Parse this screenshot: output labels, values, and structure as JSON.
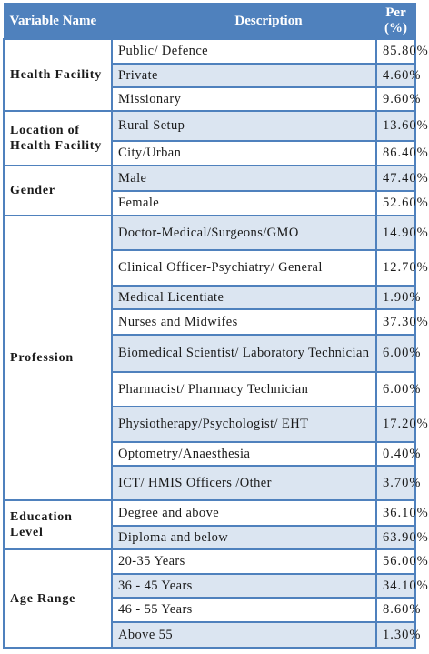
{
  "header": {
    "variable": "Variable Name",
    "description": "Description",
    "percent": "Per (%)"
  },
  "groups": [
    {
      "name": "Health Facility",
      "rows": [
        {
          "description": "Public/ Defence",
          "percent": "85.80%"
        },
        {
          "description": "Private",
          "percent": "4.60%"
        },
        {
          "description": "Missionary",
          "percent": "9.60%"
        }
      ]
    },
    {
      "name": "Location of Health Facility",
      "rows": [
        {
          "description": "Rural Setup",
          "percent": "13.60%"
        },
        {
          "description": "City/Urban",
          "percent": "86.40%"
        }
      ]
    },
    {
      "name": "Gender",
      "rows": [
        {
          "description": "Male",
          "percent": "47.40%"
        },
        {
          "description": "Female",
          "percent": "52.60%"
        }
      ]
    },
    {
      "name": "Profession",
      "rows": [
        {
          "description": "Doctor-Medical/Surgeons/GMO",
          "percent": "14.90%"
        },
        {
          "description": "Clinical Officer-Psychiatry/ General",
          "percent": "12.70%"
        },
        {
          "description": "Medical Licentiate",
          "percent": "1.90%"
        },
        {
          "description": "Nurses and Midwifes",
          "percent": "37.30%"
        },
        {
          "description": "Biomedical Scientist/ Laboratory Technician",
          "percent": "6.00%"
        },
        {
          "description": "Pharmacist/ Pharmacy Technician",
          "percent": "6.00%"
        },
        {
          "description": "Physiotherapy/Psychologist/ EHT",
          "percent": "17.20%"
        },
        {
          "description": "Optometry/Anaesthesia",
          "percent": "0.40%"
        },
        {
          "description": "ICT/ HMIS Officers /Other",
          "percent": "3.70%"
        }
      ]
    },
    {
      "name": "Education Level",
      "rows": [
        {
          "description": "Degree and above",
          "percent": "36.10%"
        },
        {
          "description": "Diploma and below",
          "percent": "63.90%"
        }
      ]
    },
    {
      "name": "Age Range",
      "rows": [
        {
          "description": "20-35 Years",
          "percent": "56.00%"
        },
        {
          "description": "36 - 45 Years",
          "percent": "34.10%"
        },
        {
          "description": "46 - 55 Years",
          "percent": "8.60%"
        },
        {
          "description": "Above 55",
          "percent": "1.30%"
        }
      ]
    }
  ]
}
